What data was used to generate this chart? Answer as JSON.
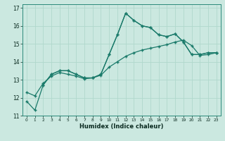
{
  "title": "",
  "xlabel": "Humidex (Indice chaleur)",
  "background_color": "#cbe8e0",
  "grid_color": "#b0d8cc",
  "line_color": "#1a7a6a",
  "xlim": [
    -0.5,
    23.5
  ],
  "ylim": [
    11,
    17.2
  ],
  "xticks": [
    0,
    1,
    2,
    3,
    4,
    5,
    6,
    7,
    8,
    9,
    10,
    11,
    12,
    13,
    14,
    15,
    16,
    17,
    18,
    19,
    20,
    21,
    22,
    23
  ],
  "yticks": [
    11,
    12,
    13,
    14,
    15,
    16,
    17
  ],
  "series": [
    {
      "x": [
        0,
        1,
        2,
        3,
        4,
        5,
        6,
        7,
        8,
        9,
        10,
        11,
        12,
        13,
        14,
        15,
        16,
        17,
        18,
        19,
        20,
        21,
        22,
        23
      ],
      "y": [
        11.8,
        11.3,
        12.7,
        13.3,
        13.5,
        13.5,
        13.3,
        13.1,
        13.1,
        13.3,
        14.4,
        15.5,
        16.7,
        16.3,
        16.0,
        15.9,
        15.5,
        15.4,
        15.55,
        15.1,
        14.4,
        14.4,
        14.5,
        14.5
      ]
    },
    {
      "x": [
        2,
        3,
        4,
        5,
        6,
        7,
        8,
        9,
        10,
        11,
        12,
        13,
        14,
        15,
        16,
        17,
        18,
        19,
        20,
        21,
        22,
        23
      ],
      "y": [
        12.7,
        13.3,
        13.5,
        13.5,
        13.3,
        13.1,
        13.1,
        13.3,
        14.4,
        15.5,
        16.7,
        16.3,
        16.0,
        15.9,
        15.5,
        15.4,
        15.55,
        15.1,
        14.4,
        14.4,
        14.5,
        14.5
      ]
    },
    {
      "x": [
        0,
        1,
        2,
        3,
        4,
        5,
        6,
        7,
        8,
        9,
        10,
        11,
        12,
        13,
        14,
        15,
        16,
        17,
        18,
        19,
        20,
        21,
        22,
        23
      ],
      "y": [
        12.3,
        12.1,
        12.8,
        13.2,
        13.4,
        13.3,
        13.2,
        13.05,
        13.1,
        13.25,
        13.7,
        14.0,
        14.3,
        14.5,
        14.65,
        14.75,
        14.85,
        14.95,
        15.1,
        15.2,
        14.9,
        14.35,
        14.4,
        14.5
      ]
    }
  ]
}
